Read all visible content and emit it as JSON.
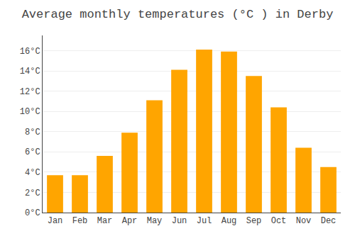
{
  "chart_data": {
    "type": "bar",
    "title": "Average monthly temperatures (°C ) in Derby",
    "categories": [
      "Jan",
      "Feb",
      "Mar",
      "Apr",
      "May",
      "Jun",
      "Jul",
      "Aug",
      "Sep",
      "Oct",
      "Nov",
      "Dec"
    ],
    "values": [
      3.7,
      3.7,
      5.6,
      7.9,
      11.1,
      14.1,
      16.1,
      15.9,
      13.5,
      10.4,
      6.4,
      4.5
    ],
    "color": "#FFA500",
    "ylim": [
      0,
      17.5
    ],
    "yticks": [
      {
        "value": 0,
        "label": "0°C"
      },
      {
        "value": 2,
        "label": "2°C"
      },
      {
        "value": 4,
        "label": "4°C"
      },
      {
        "value": 6,
        "label": "6°C"
      },
      {
        "value": 8,
        "label": "8°C"
      },
      {
        "value": 10,
        "label": "10°C"
      },
      {
        "value": 12,
        "label": "12°C"
      },
      {
        "value": 14,
        "label": "14°C"
      },
      {
        "value": 16,
        "label": "16°C"
      }
    ],
    "grid": true
  }
}
